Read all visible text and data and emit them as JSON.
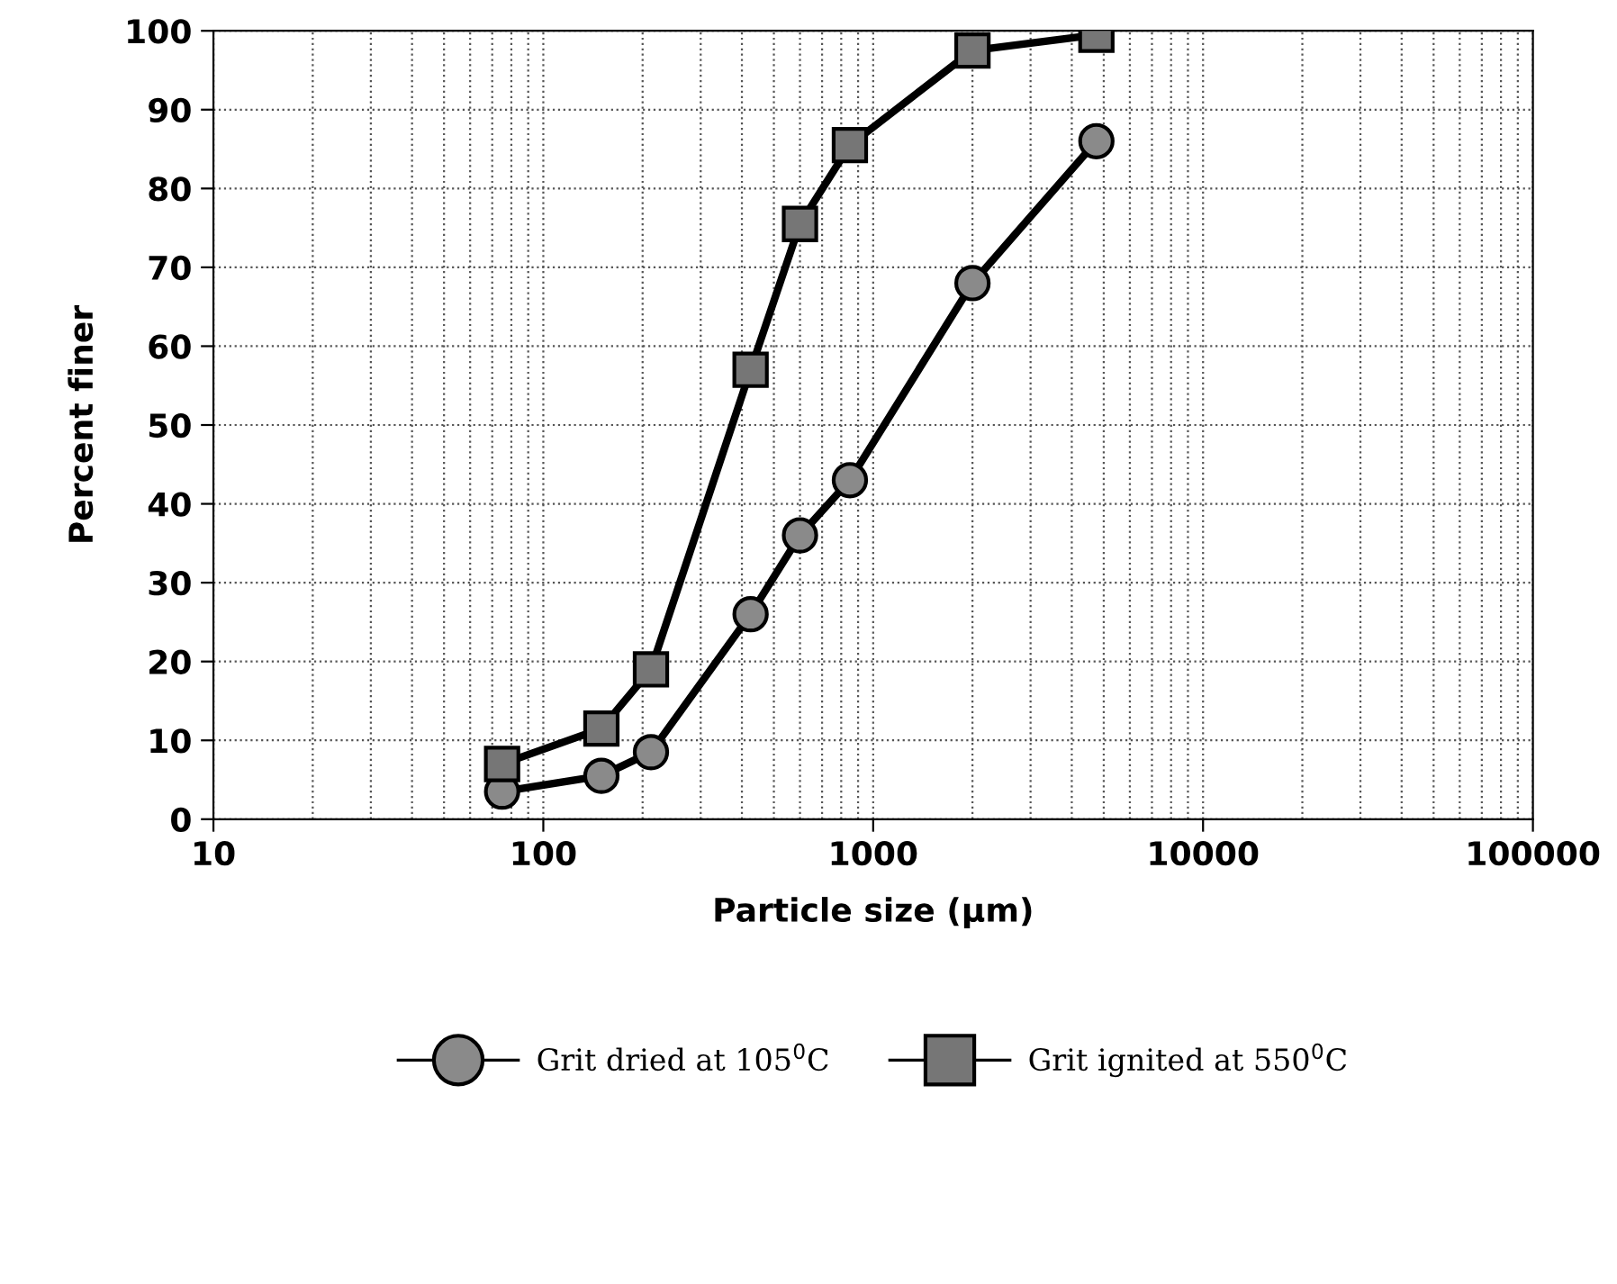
{
  "chart_data": {
    "type": "line",
    "xlabel": "Particle size (µm)",
    "ylabel": "Percent finer",
    "log": "x",
    "xlim": [
      10,
      100000
    ],
    "xticks": [
      10,
      100,
      1000,
      10000,
      100000
    ],
    "ylim": [
      0,
      100
    ],
    "yticks": [
      0,
      10,
      20,
      30,
      40,
      50,
      60,
      70,
      80,
      90,
      100
    ],
    "grid": true,
    "legend": "bottom",
    "line_style": "solid",
    "series": [
      {
        "name": "Grit dried at 105$^{0}$C",
        "color": "#8a8a8a",
        "marker": "circle",
        "x": [
          75,
          150,
          212,
          425,
          600,
          850,
          2000,
          4750
        ],
        "values": [
          3.5,
          5.5,
          8.5,
          26,
          36,
          43,
          68,
          86
        ]
      },
      {
        "name": "Grit ignited at 550$^{0}$C",
        "color": "#767676",
        "marker": "square",
        "x": [
          75,
          150,
          212,
          425,
          600,
          850,
          2000,
          4750
        ],
        "values": [
          7,
          11.5,
          19,
          57,
          75.5,
          85.5,
          97.5,
          99.5
        ]
      }
    ]
  }
}
